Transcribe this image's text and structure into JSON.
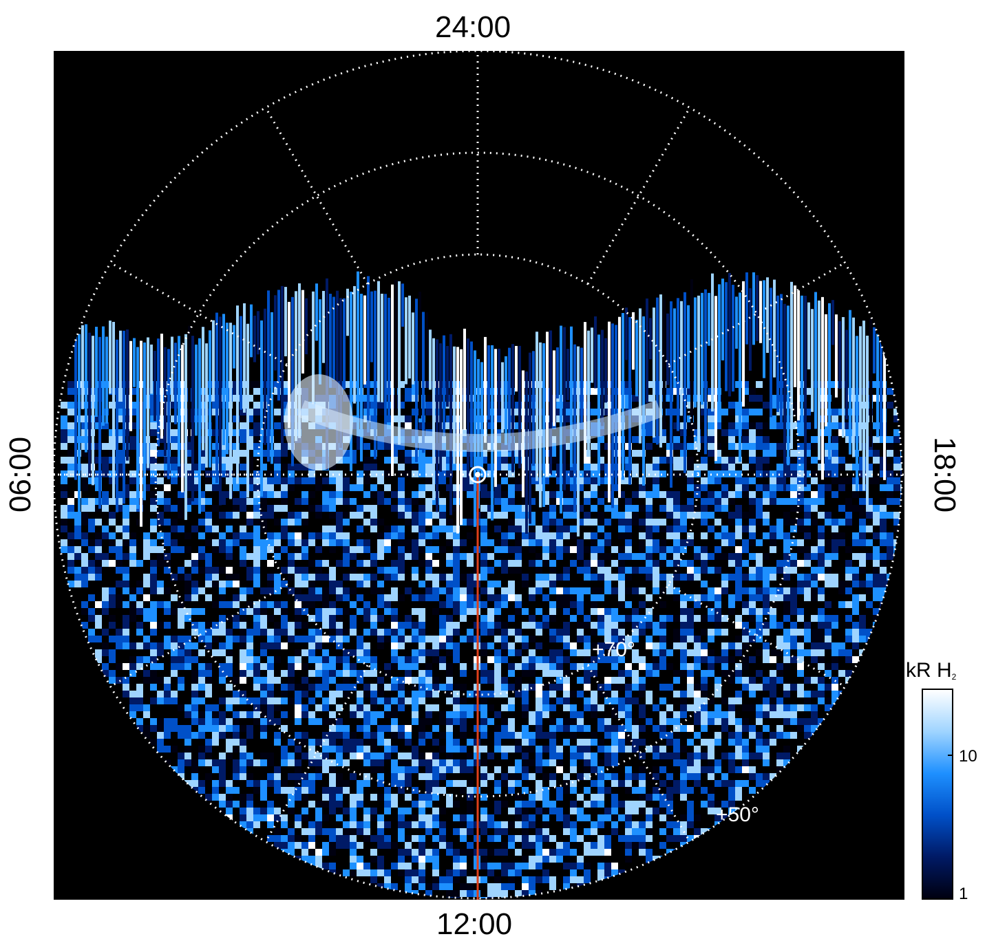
{
  "local_time_labels": {
    "top": "24:00",
    "bottom": "12:00",
    "left": "06:00",
    "right": "18:00"
  },
  "latitude_labels": {
    "lat70": "+70°",
    "lat50": "+50°"
  },
  "colorbar": {
    "title": "kR H",
    "title_sub": "2",
    "ticks": [
      "10",
      "1"
    ],
    "colormap": [
      "#000010",
      "#001a66",
      "#0050c8",
      "#1e90ff",
      "#9fd4ff",
      "#ffffff"
    ]
  },
  "colors": {
    "background": "#000000",
    "grid": "#ffffff",
    "meridian_line": "#e0401a"
  },
  "orientation": "top-24:00 bottom-12:00 left-06:00 right-18:00"
}
